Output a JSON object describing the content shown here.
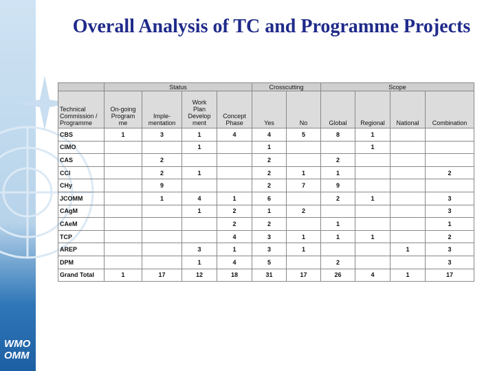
{
  "header": {
    "title": "Overall Analysis of TC and Programme Projects"
  },
  "sidebar": {
    "logo_lines": [
      "WMO",
      "OMM"
    ]
  },
  "table": {
    "groups": [
      {
        "label": "Status",
        "span": 4
      },
      {
        "label": "Crosscutting",
        "span": 2
      },
      {
        "label": "Scope",
        "span": 4
      }
    ],
    "columns": [
      "Technical\nCommission /\nProgramme",
      "On-going\nProgram\nme",
      "Imple-\nmentation",
      "Work\nPlan\nDevelop\nment",
      "Concept\nPhase",
      "Yes",
      "No",
      "Global",
      "Regional",
      "National",
      "Combination"
    ],
    "rows": [
      [
        "CBS",
        1,
        3,
        1,
        4,
        4,
        5,
        8,
        1,
        null,
        null
      ],
      [
        "CIMO",
        null,
        null,
        1,
        null,
        1,
        null,
        null,
        1,
        null,
        null
      ],
      [
        "CAS",
        null,
        2,
        null,
        null,
        2,
        null,
        2,
        null,
        null,
        null
      ],
      [
        "CCl",
        null,
        2,
        1,
        null,
        2,
        1,
        1,
        null,
        null,
        2
      ],
      [
        "CHy",
        null,
        9,
        null,
        null,
        2,
        7,
        9,
        null,
        null,
        null
      ],
      [
        "JCOMM",
        null,
        1,
        4,
        1,
        6,
        null,
        2,
        1,
        null,
        3
      ],
      [
        "CAgM",
        null,
        null,
        1,
        2,
        1,
        2,
        null,
        null,
        null,
        3
      ],
      [
        "CAeM",
        null,
        null,
        null,
        2,
        2,
        null,
        1,
        null,
        null,
        1
      ],
      [
        "TCP",
        null,
        null,
        null,
        4,
        3,
        1,
        1,
        1,
        null,
        2
      ],
      [
        "AREP",
        null,
        null,
        3,
        1,
        3,
        1,
        null,
        null,
        1,
        3
      ],
      [
        "DPM",
        null,
        null,
        1,
        4,
        5,
        null,
        2,
        null,
        null,
        3
      ],
      [
        "Grand Total",
        1,
        17,
        12,
        18,
        31,
        17,
        26,
        4,
        1,
        17
      ]
    ]
  }
}
